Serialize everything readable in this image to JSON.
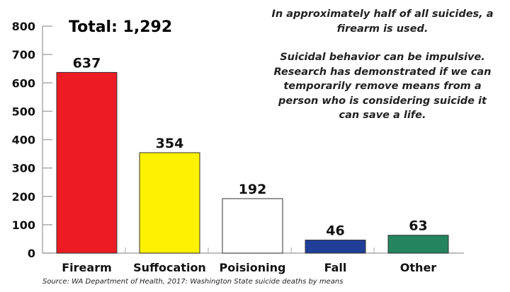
{
  "chart_data": {
    "type": "bar",
    "title": "Total: 1,292",
    "categories": [
      "Firearm",
      "Suffocation",
      "Poisioning",
      "Fall",
      "Other"
    ],
    "values": [
      637,
      354,
      192,
      46,
      63
    ],
    "data_labels": [
      "637",
      "354",
      "192",
      "46",
      "63"
    ],
    "colors": [
      "#ed1c24",
      "#fff200",
      "#ffffff",
      "#1f3f99",
      "#23845e"
    ],
    "ylim": [
      0,
      800
    ],
    "yticks": [
      0,
      100,
      200,
      300,
      400,
      500,
      600,
      700,
      800
    ],
    "xlabel": "",
    "ylabel": "",
    "grid": false,
    "annotations": [
      "In approximately half of all suicides, a firearm is used.",
      "Suicidal behavior can be impulsive. Research has demonstrated if we can temporarily remove means from a person who is considering suicide it can save a life."
    ],
    "source": "Source: WA Department of Health, 2017: Washington State suicide deaths by means"
  }
}
